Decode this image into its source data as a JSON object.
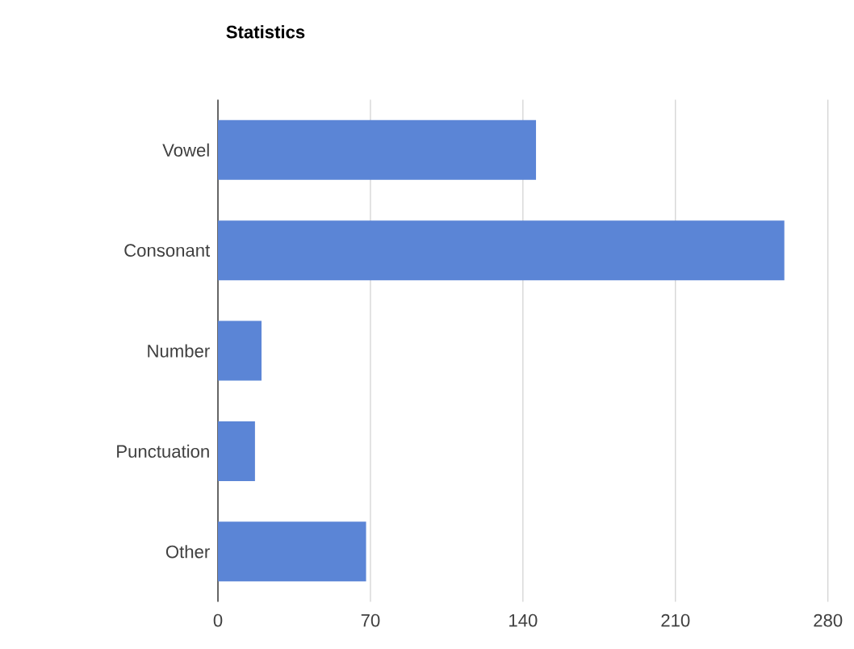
{
  "chart_data": {
    "type": "bar",
    "orientation": "horizontal",
    "title": "Statistics",
    "categories": [
      "Vowel",
      "Consonant",
      "Number",
      "Punctuation",
      "Other"
    ],
    "values": [
      146,
      260,
      20,
      17,
      68
    ],
    "color": "#5b85d6",
    "xlim": [
      0,
      280
    ],
    "xticks": [
      0,
      70,
      140,
      210,
      280
    ],
    "grid": "x"
  }
}
